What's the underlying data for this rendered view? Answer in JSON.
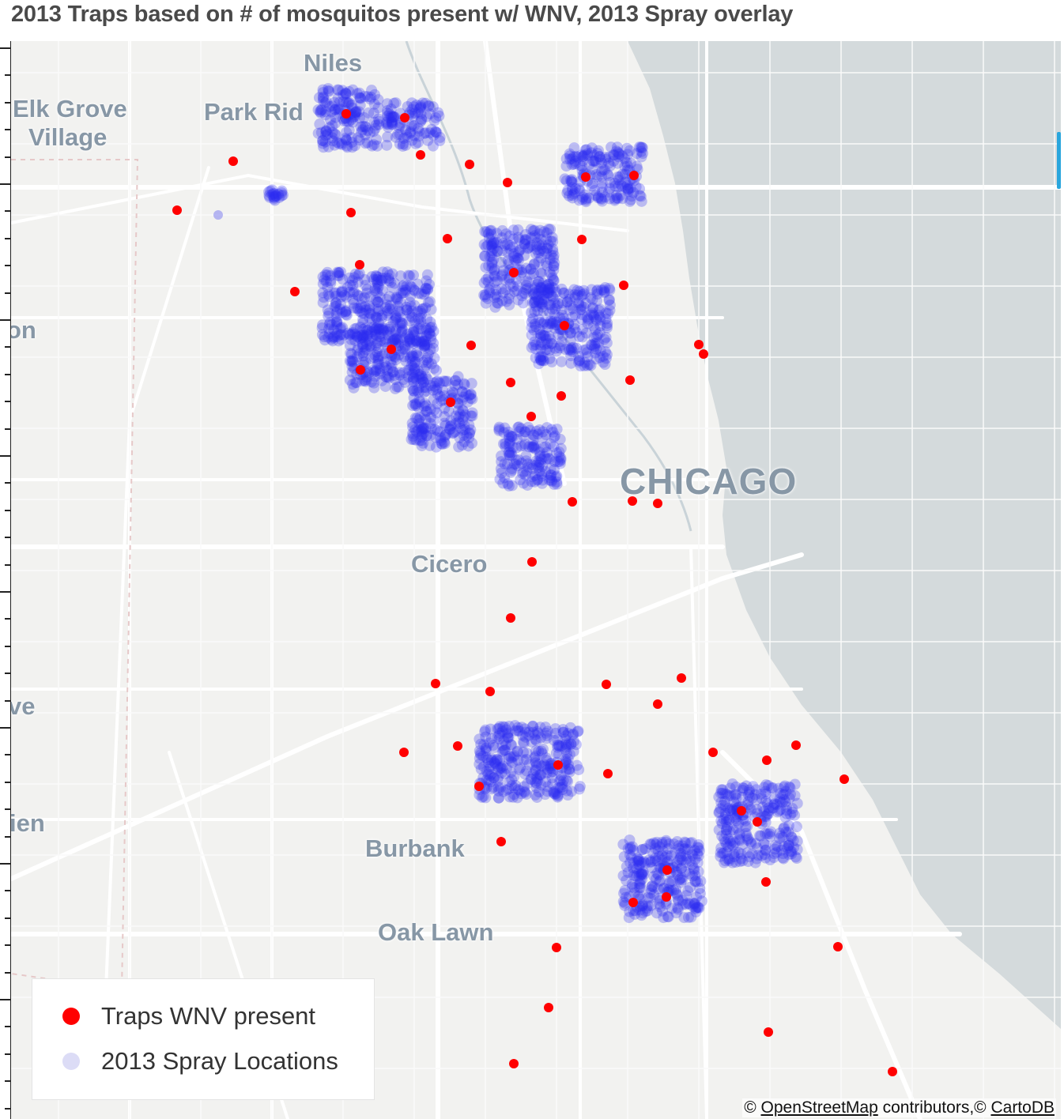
{
  "title": "2013 Traps based on # of mosquitos present w/ WNV, 2013 Spray overlay",
  "legend": {
    "items": [
      {
        "label": "Traps WNV present",
        "color": "#ff0000"
      },
      {
        "label": "2013 Spray Locations",
        "color": "#dcdcf6"
      }
    ]
  },
  "attribution": {
    "prefix": "© ",
    "osm": "OpenStreetMap",
    "middle": " contributors,© ",
    "carto": "CartoDB"
  },
  "places": [
    {
      "name": "Niles"
    },
    {
      "name": "Elk Grove"
    },
    {
      "name": "Village"
    },
    {
      "name": "Park Rid"
    },
    {
      "name": "on"
    },
    {
      "name": "CHICAGO"
    },
    {
      "name": "Cicero"
    },
    {
      "name": "ve"
    },
    {
      "name": "Burbank"
    },
    {
      "name": "ien"
    },
    {
      "name": "Oak Lawn"
    }
  ],
  "colors": {
    "trap": "#ff0000",
    "spray": "#2b2bf0",
    "lake": "#d4dadc",
    "land": "#f2f2f0",
    "road": "#ffffff"
  },
  "icons": {
    "trap-marker": "filled-circle",
    "spray-marker": "translucent-circle"
  }
}
